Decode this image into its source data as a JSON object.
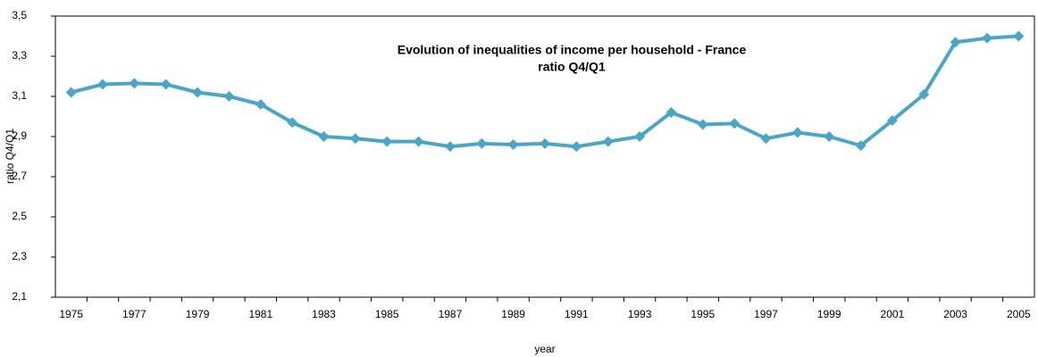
{
  "chart_data": {
    "type": "line",
    "title": "Evolution of inequalities of income per household - France",
    "subtitle": "ratio Q4/Q1",
    "x_label": "year",
    "y_label": "ratio Q4/Q1",
    "categories": [
      1975,
      null,
      1977,
      null,
      1979,
      null,
      1981,
      null,
      1983,
      null,
      1985,
      null,
      1987,
      null,
      1989,
      null,
      1991,
      null,
      1993,
      null,
      1995,
      null,
      1997,
      null,
      1999,
      null,
      2001,
      null,
      2003,
      null,
      2005
    ],
    "series": [
      {
        "name": "ratio Q4/Q1",
        "color": "#4ba5c6",
        "values": [
          3.12,
          3.16,
          3.165,
          3.16,
          3.12,
          3.1,
          3.06,
          2.97,
          2.9,
          2.89,
          2.875,
          2.875,
          2.85,
          2.865,
          2.86,
          2.865,
          2.85,
          2.875,
          2.9,
          3.02,
          2.96,
          2.965,
          2.89,
          2.92,
          2.9,
          2.855,
          2.98,
          3.11,
          3.37,
          3.39,
          3.4
        ]
      }
    ],
    "ylim": [
      2.1,
      3.5
    ],
    "yticks": [
      {
        "value": 2.1,
        "label": "2,1"
      },
      {
        "value": 2.3,
        "label": "2,3"
      },
      {
        "value": 2.5,
        "label": "2,5"
      },
      {
        "value": 2.7,
        "label": "2,7"
      },
      {
        "value": 2.9,
        "label": "2,9"
      },
      {
        "value": 3.1,
        "label": "3,1"
      },
      {
        "value": 3.3,
        "label": "3,3"
      },
      {
        "value": 3.5,
        "label": "3,5"
      }
    ],
    "grid": false
  }
}
